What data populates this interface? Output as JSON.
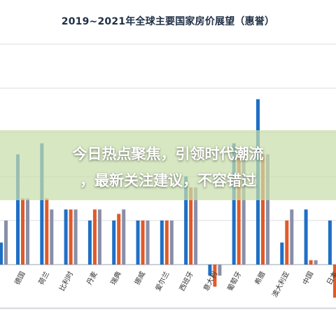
{
  "chart_data": {
    "type": "bar",
    "title": "2019~2021年全球主要国家房价展望（惠誉）",
    "xlabel": "",
    "ylabel": "",
    "ylim": [
      -8,
      12
    ],
    "grid": true,
    "categories": [
      "德国",
      "荷兰",
      "比利时",
      "丹麦",
      "瑞典",
      "挪威",
      "爱尔兰",
      "西班牙",
      "意大利",
      "葡萄牙",
      "希腊",
      "澳大利亚",
      "中国",
      "日本"
    ],
    "series": [
      {
        "name": "",
        "color": "#1f6fc5",
        "values": [
          5.0,
          5.5,
          2.5,
          2.0,
          2.0,
          2.0,
          2.0,
          4.0,
          -0.5,
          5.5,
          7.5,
          1.0,
          2.5,
          2.0
        ]
      },
      {
        "name": "",
        "color": "#e05a2a",
        "values": [
          3.0,
          3.0,
          2.5,
          2.5,
          2.3,
          2.0,
          2.0,
          3.5,
          -1.0,
          5.0,
          5.0,
          2.0,
          0.2,
          -1.5
        ]
      },
      {
        "name": "",
        "color": "#8a8fa8",
        "values": [
          3.0,
          2.5,
          2.5,
          2.5,
          2.5,
          2.0,
          2.0,
          3.5,
          -0.5,
          4.8,
          5.0,
          2.5,
          0.2,
          -0.3
        ]
      }
    ],
    "partial_left_bars": {
      "series1": 1.0,
      "series2": 2.0
    }
  },
  "overlay": {
    "line1": "今日热点聚焦，引领时代潮流",
    "line2": "，最新关注建议，不容错过"
  }
}
